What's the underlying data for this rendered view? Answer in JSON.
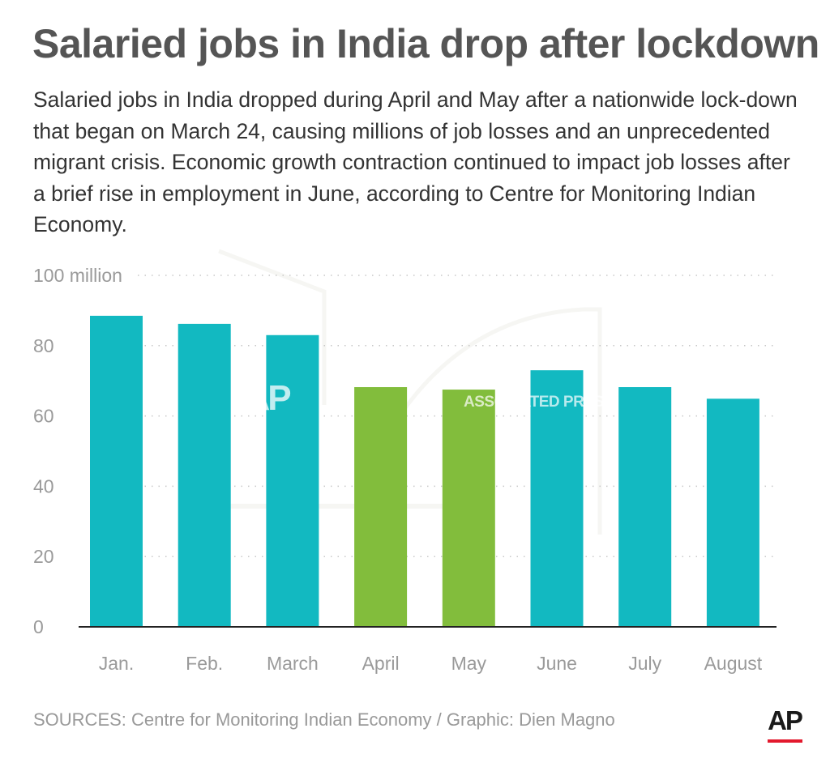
{
  "header": {
    "title": "Salaried jobs in India drop after lockdown",
    "subtitle": "Salaried jobs in India dropped during April and May after a nationwide lock-down that began on March 24, causing millions of job losses and an unprecedented migrant crisis. Economic growth contraction continued to impact job losses after a brief rise in employment in June, according to Centre for Monitoring Indian Economy."
  },
  "chart_data": {
    "type": "bar",
    "categories": [
      "Jan.",
      "Feb.",
      "March",
      "April",
      "May",
      "June",
      "July",
      "August"
    ],
    "values": [
      88.5,
      86.2,
      83.0,
      68.2,
      67.5,
      73.0,
      68.2,
      64.9
    ],
    "ylim": [
      0,
      100
    ],
    "yticks": [
      0,
      20,
      40,
      60,
      80,
      100
    ],
    "ytick_labels": [
      "0",
      "20",
      "40",
      "60",
      "80",
      "100 million"
    ],
    "grid": true,
    "colors": {
      "default": "#12b9c1",
      "highlight": "#82bd3c",
      "highlight_categories": [
        "April",
        "May"
      ]
    }
  },
  "watermark": {
    "logo": "AP",
    "text": "ASSOCIATED PRESS"
  },
  "footer": {
    "source": "SOURCES: Centre for Monitoring Indian Economy / Graphic: Dien Magno",
    "logo": "AP",
    "logo_accent": "#e3192d"
  }
}
